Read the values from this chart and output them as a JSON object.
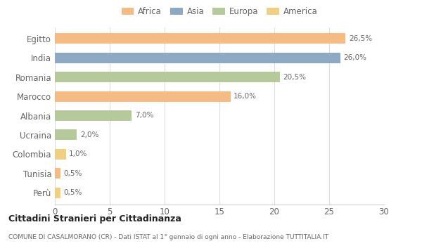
{
  "categories": [
    "Egitto",
    "India",
    "Romania",
    "Marocco",
    "Albania",
    "Ucraina",
    "Colombia",
    "Tunisia",
    "Perù"
  ],
  "values": [
    26.5,
    26.0,
    20.5,
    16.0,
    7.0,
    2.0,
    1.0,
    0.5,
    0.5
  ],
  "colors": [
    "#F5BB85",
    "#8DA9C4",
    "#B5C99A",
    "#F5BB85",
    "#B5C99A",
    "#B5C99A",
    "#F0D080",
    "#F5BB85",
    "#F0D080"
  ],
  "labels": [
    "26,5%",
    "26,0%",
    "20,5%",
    "16,0%",
    "7,0%",
    "2,0%",
    "1,0%",
    "0,5%",
    "0,5%"
  ],
  "legend_labels": [
    "Africa",
    "Asia",
    "Europa",
    "America"
  ],
  "legend_colors": [
    "#F5BB85",
    "#8DA9C4",
    "#B5C99A",
    "#F0D080"
  ],
  "title": "Cittadini Stranieri per Cittadinanza",
  "subtitle": "COMUNE DI CASALMORANO (CR) - Dati ISTAT al 1° gennaio di ogni anno - Elaborazione TUTTITALIA.IT",
  "xlim": [
    0,
    30
  ],
  "xticks": [
    0,
    5,
    10,
    15,
    20,
    25,
    30
  ],
  "bg_color": "#ffffff",
  "bar_height": 0.55
}
